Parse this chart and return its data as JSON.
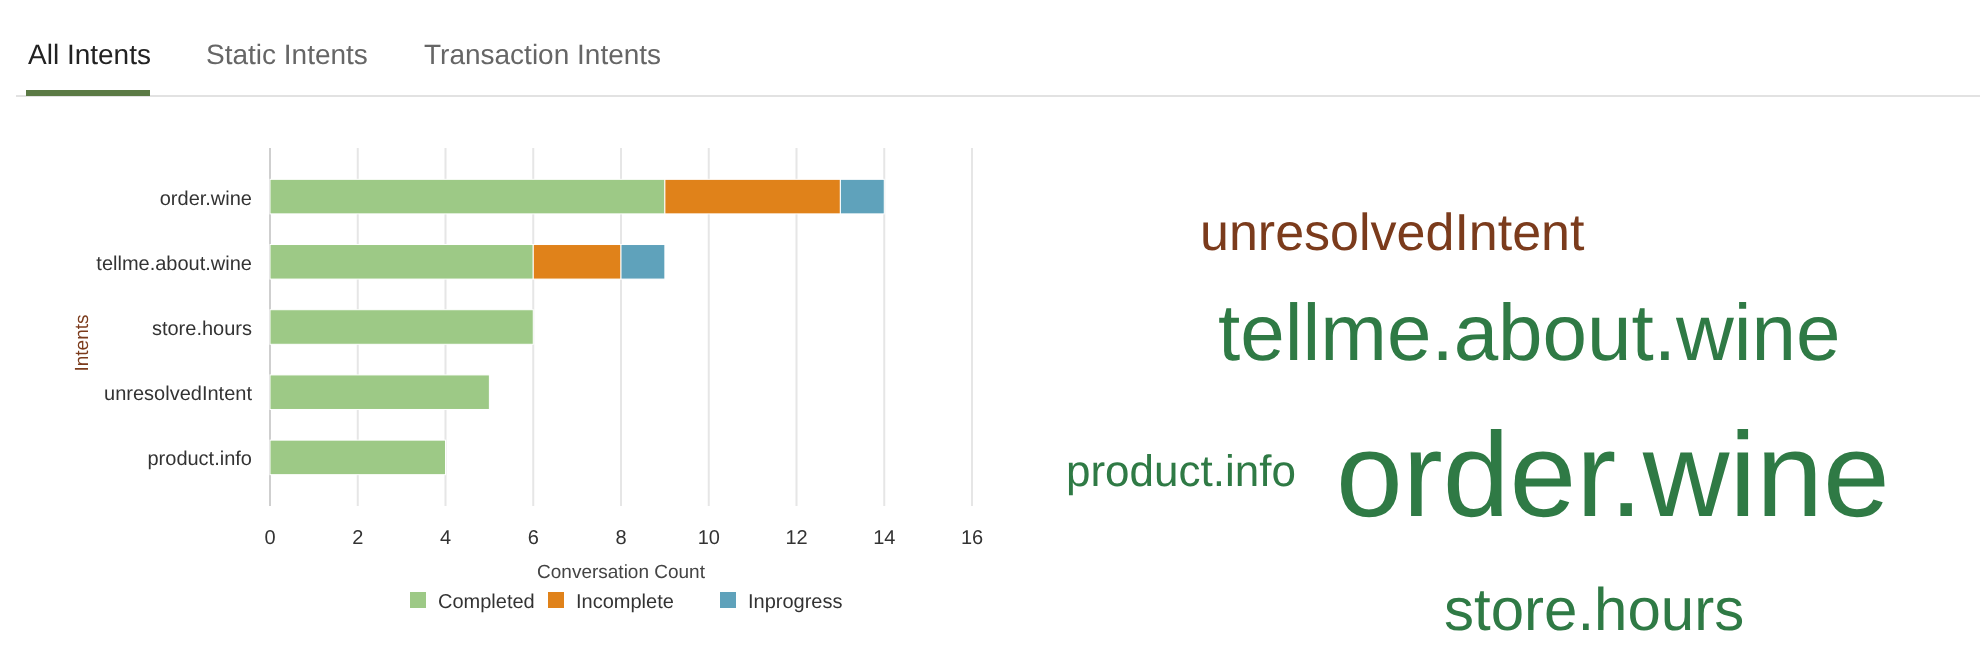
{
  "chart_data": [
    {
      "type": "other",
      "categories": [
        "All Intents",
        "Static Intents",
        "Transaction Intents"
      ]
    },
    {
      "type": "bar",
      "orientation": "horizontal",
      "stacked": true,
      "categories": [
        "order.wine",
        "tellme.about.wine",
        "store.hours",
        "unresolvedIntent",
        "product.info"
      ],
      "xlabel": "Conversation Count",
      "ylabel": "Intents",
      "xlim": [
        0,
        16
      ],
      "xticks": [
        0,
        2,
        4,
        6,
        8,
        10,
        12,
        14,
        16
      ],
      "grid": "x",
      "legend": "bottom",
      "series": [
        {
          "name": "Completed",
          "color": "#9dc986",
          "values": [
            9,
            6,
            6,
            5,
            4
          ]
        },
        {
          "name": "Incomplete",
          "color": "#e0821a",
          "values": [
            4,
            2,
            null,
            null,
            null
          ]
        },
        {
          "name": "Inprogress",
          "color": "#5fa2bb",
          "values": [
            1,
            1,
            null,
            null,
            null
          ]
        }
      ]
    },
    {
      "type": "other",
      "categories": [
        "unresolvedIntent",
        "tellme.about.wine",
        "product.info",
        "order.wine",
        "store.hours"
      ],
      "colors": [
        "#7b3b1c",
        "#2f7a45",
        "#2f7a45",
        "#2f7a45",
        "#2f7a45"
      ]
    }
  ]
}
